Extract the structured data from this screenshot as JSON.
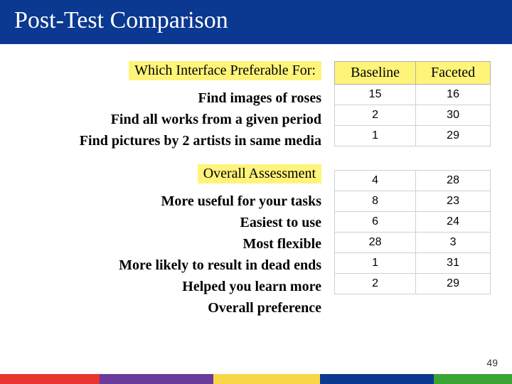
{
  "title": "Post-Test Comparison",
  "section1_header": "Which Interface Preferable For:",
  "section2_header": "Overall Assessment",
  "col_headers": {
    "baseline": "Baseline",
    "faceted": "Faceted"
  },
  "tasks": [
    {
      "label": "Find images of roses",
      "baseline": 15,
      "faceted": 16
    },
    {
      "label": "Find all works from a given period",
      "baseline": 2,
      "faceted": 30
    },
    {
      "label": "Find pictures by 2 artists in same media",
      "baseline": 1,
      "faceted": 29
    }
  ],
  "assessments": [
    {
      "label": "More useful for your tasks",
      "baseline": 4,
      "faceted": 28
    },
    {
      "label": "Easiest to use",
      "baseline": 8,
      "faceted": 23
    },
    {
      "label": "Most flexible",
      "baseline": 6,
      "faceted": 24
    },
    {
      "label": "More likely to result in dead ends",
      "baseline": 28,
      "faceted": 3
    },
    {
      "label": "Helped you learn more",
      "baseline": 1,
      "faceted": 31
    },
    {
      "label": "Overall preference",
      "baseline": 2,
      "faceted": 29
    }
  ],
  "page_number": 49,
  "colors": {
    "title_bg": "#0b3890",
    "highlight_bg": "#fff47a",
    "stripe1": "#e8352e",
    "stripe2": "#6a3a9c",
    "stripe3": "#f8d648",
    "stripe4": "#0b3890",
    "stripe5": "#3aa535"
  },
  "stripe_widths": [
    140,
    160,
    150,
    160,
    110
  ]
}
